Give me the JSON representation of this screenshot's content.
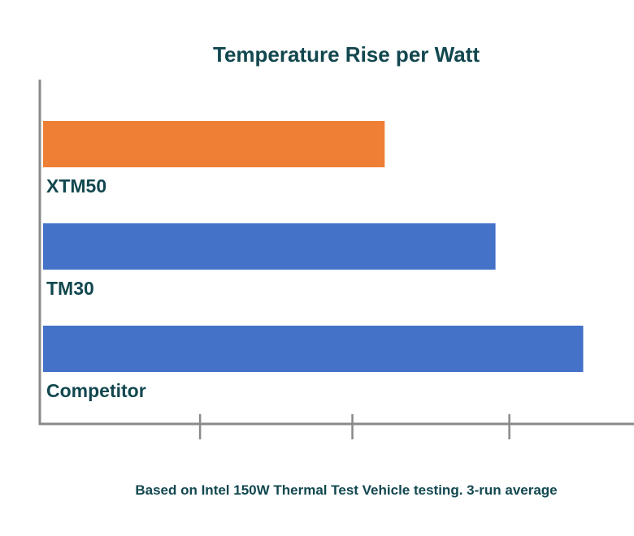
{
  "chart_data": {
    "type": "bar",
    "orientation": "horizontal",
    "title": "Temperature Rise per Watt",
    "categories": [
      "XTM50",
      "TM30",
      "Competitor"
    ],
    "values": [
      0.74,
      0.98,
      1.17
    ],
    "bar_colors": [
      "#ee7f34",
      "#4472c8",
      "#4472c8"
    ],
    "xlabel": "",
    "ylabel": "",
    "xlim": [
      0,
      1.28
    ],
    "x_ticks": [
      0.34,
      0.67,
      1.01
    ],
    "tick_labels_shown": false,
    "grid": false,
    "legend": "none",
    "footnote": "Based on Intel 150W Thermal Test Vehicle testing. 3-run average"
  },
  "colors": {
    "title_text": "#12474f",
    "axis": "#8a8a8a",
    "highlight": "#ee7f34",
    "series": "#4472c8",
    "background": "#ffffff"
  }
}
